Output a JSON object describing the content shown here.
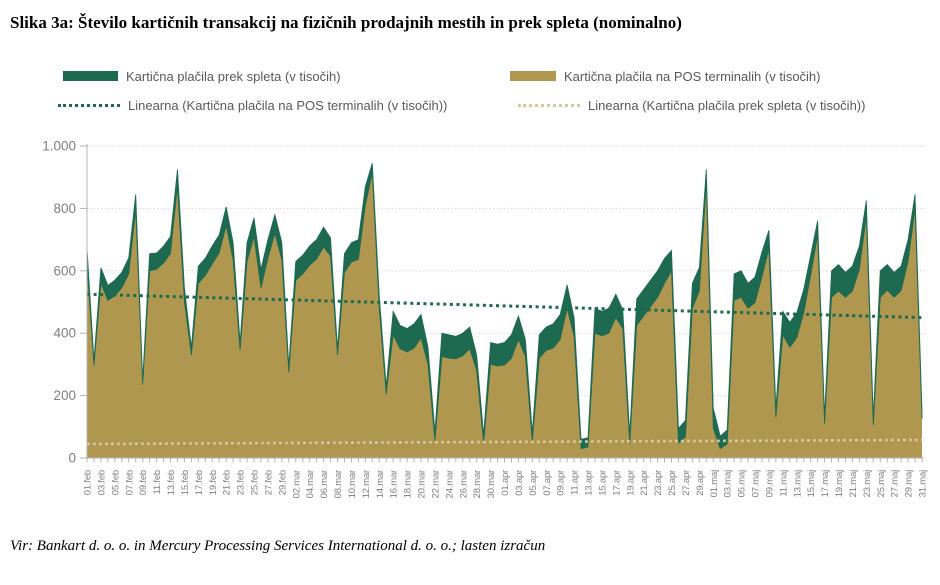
{
  "title": "Slika 3a: Število kartičnih transakcij na fizičnih prodajnih mestih in prek spleta (nominalno)",
  "source": "Vir: Bankart d. o. o. in Mercury Processing Services International d. o. o.; lasten izračun",
  "legend": {
    "items": [
      {
        "type": "rect",
        "color": "#1e6a50",
        "label": "Kartična plačila prek spleta (v tisočih)"
      },
      {
        "type": "rect",
        "color": "#b09750",
        "label": "Kartična plačila na POS terminalih (v tisočih)"
      },
      {
        "type": "dots",
        "color": "#1e6a50",
        "label": "Linearna (Kartična plačila na POS terminalih (v tisočih))"
      },
      {
        "type": "dots",
        "color": "#d9c89c",
        "label": "Linearna (Kartična plačila prek spleta (v tisočih))"
      }
    ]
  },
  "chart_data": {
    "type": "area",
    "stacked": true,
    "title": "Slika 3a: Število kartičnih transakcij na fizičnih prodajnih mestih in prek spleta (nominalno)",
    "xlabel": "",
    "ylabel": "",
    "ylim": [
      0,
      1000
    ],
    "x_count": 121,
    "x_label_step": 2,
    "x_tick_labels": [
      "01.feb",
      "03.feb",
      "05.feb",
      "07.feb",
      "09.feb",
      "11.feb",
      "13.feb",
      "15.feb",
      "17.feb",
      "19.feb",
      "21.feb",
      "23.feb",
      "25.feb",
      "27.feb",
      "29.feb",
      "02.mar",
      "04.mar",
      "06.mar",
      "08.mar",
      "10.mar",
      "12.mar",
      "14.mar",
      "16.mar",
      "18.mar",
      "20.mar",
      "22.mar",
      "24.mar",
      "26.mar",
      "28.mar",
      "30.mar",
      "01.apr",
      "03.apr",
      "05.apr",
      "07.apr",
      "09.apr",
      "11.apr",
      "13.apr",
      "15.apr",
      "17.apr",
      "19.apr",
      "21.apr",
      "23.apr",
      "25.apr",
      "27.apr",
      "29.apr",
      "01.maj",
      "03.maj",
      "05.maj",
      "07.maj",
      "09.maj",
      "11.maj",
      "13.maj",
      "15.maj",
      "17.maj",
      "19.maj",
      "21.maj",
      "23.maj",
      "25.maj",
      "27.maj",
      "29.maj",
      "31.maj"
    ],
    "y_ticks": [
      {
        "label": "0",
        "value": 0
      },
      {
        "label": "200",
        "value": 200
      },
      {
        "label": "400",
        "value": 400
      },
      {
        "label": "600",
        "value": 600
      },
      {
        "label": "800",
        "value": 800
      },
      {
        "label": "1.000",
        "value": 1000
      }
    ],
    "series": [
      {
        "name": "Kartična plačila na POS terminalih (v tisočih)",
        "color": "#b09750",
        "values": [
          620,
          295,
          560,
          505,
          520,
          545,
          590,
          795,
          235,
          600,
          605,
          625,
          655,
          870,
          500,
          330,
          560,
          585,
          622,
          657,
          745,
          635,
          345,
          630,
          710,
          545,
          640,
          720,
          635,
          275,
          570,
          590,
          618,
          638,
          676,
          648,
          330,
          595,
          628,
          636,
          810,
          912,
          480,
          205,
          395,
          350,
          340,
          352,
          385,
          300,
          55,
          325,
          320,
          318,
          328,
          350,
          280,
          48,
          300,
          295,
          298,
          320,
          380,
          325,
          52,
          320,
          345,
          352,
          380,
          480,
          390,
          30,
          35,
          400,
          392,
          400,
          450,
          415,
          45,
          425,
          455,
          485,
          515,
          560,
          600,
          48,
          68,
          480,
          535,
          880,
          95,
          30,
          45,
          505,
          515,
          480,
          498,
          580,
          670,
          130,
          395,
          355,
          385,
          465,
          585,
          715,
          110,
          515,
          535,
          515,
          535,
          605,
          775,
          105,
          515,
          538,
          515,
          537,
          630,
          800,
          125
        ]
      },
      {
        "name": "Kartična plačila prek spleta (v tisočih)",
        "color": "#1e6a50",
        "values": [
          52,
          18,
          50,
          48,
          50,
          50,
          52,
          50,
          15,
          55,
          52,
          54,
          55,
          55,
          45,
          25,
          55,
          55,
          58,
          58,
          60,
          55,
          25,
          60,
          60,
          60,
          60,
          60,
          55,
          20,
          60,
          60,
          62,
          62,
          64,
          57,
          20,
          60,
          62,
          64,
          60,
          33,
          40,
          25,
          75,
          75,
          75,
          78,
          75,
          55,
          30,
          75,
          75,
          72,
          72,
          70,
          50,
          27,
          70,
          70,
          72,
          75,
          75,
          55,
          28,
          75,
          75,
          78,
          80,
          75,
          60,
          30,
          30,
          80,
          78,
          80,
          75,
          60,
          30,
          85,
          85,
          85,
          85,
          80,
          65,
          47,
          52,
          80,
          75,
          45,
          65,
          40,
          45,
          85,
          85,
          80,
          82,
          80,
          60,
          30,
          75,
          80,
          80,
          75,
          65,
          45,
          25,
          85,
          85,
          80,
          80,
          75,
          50,
          25,
          85,
          82,
          80,
          78,
          70,
          45,
          25
        ]
      }
    ],
    "trendlines": [
      {
        "name": "Linearna (Kartična plačila na POS terminalih (v tisočih))",
        "color": "#1e6a50",
        "start": 525,
        "end": 450
      },
      {
        "name": "Linearna (Kartična plačila prek spleta (v tisočih))",
        "color": "#d9c89c",
        "start": 45,
        "end": 58
      }
    ],
    "colors": {
      "gridline": "#d9d9d9",
      "axis": "#b3b3b3",
      "tick_label": "#7f7f7f"
    },
    "grid": true,
    "legend_position": "top"
  }
}
